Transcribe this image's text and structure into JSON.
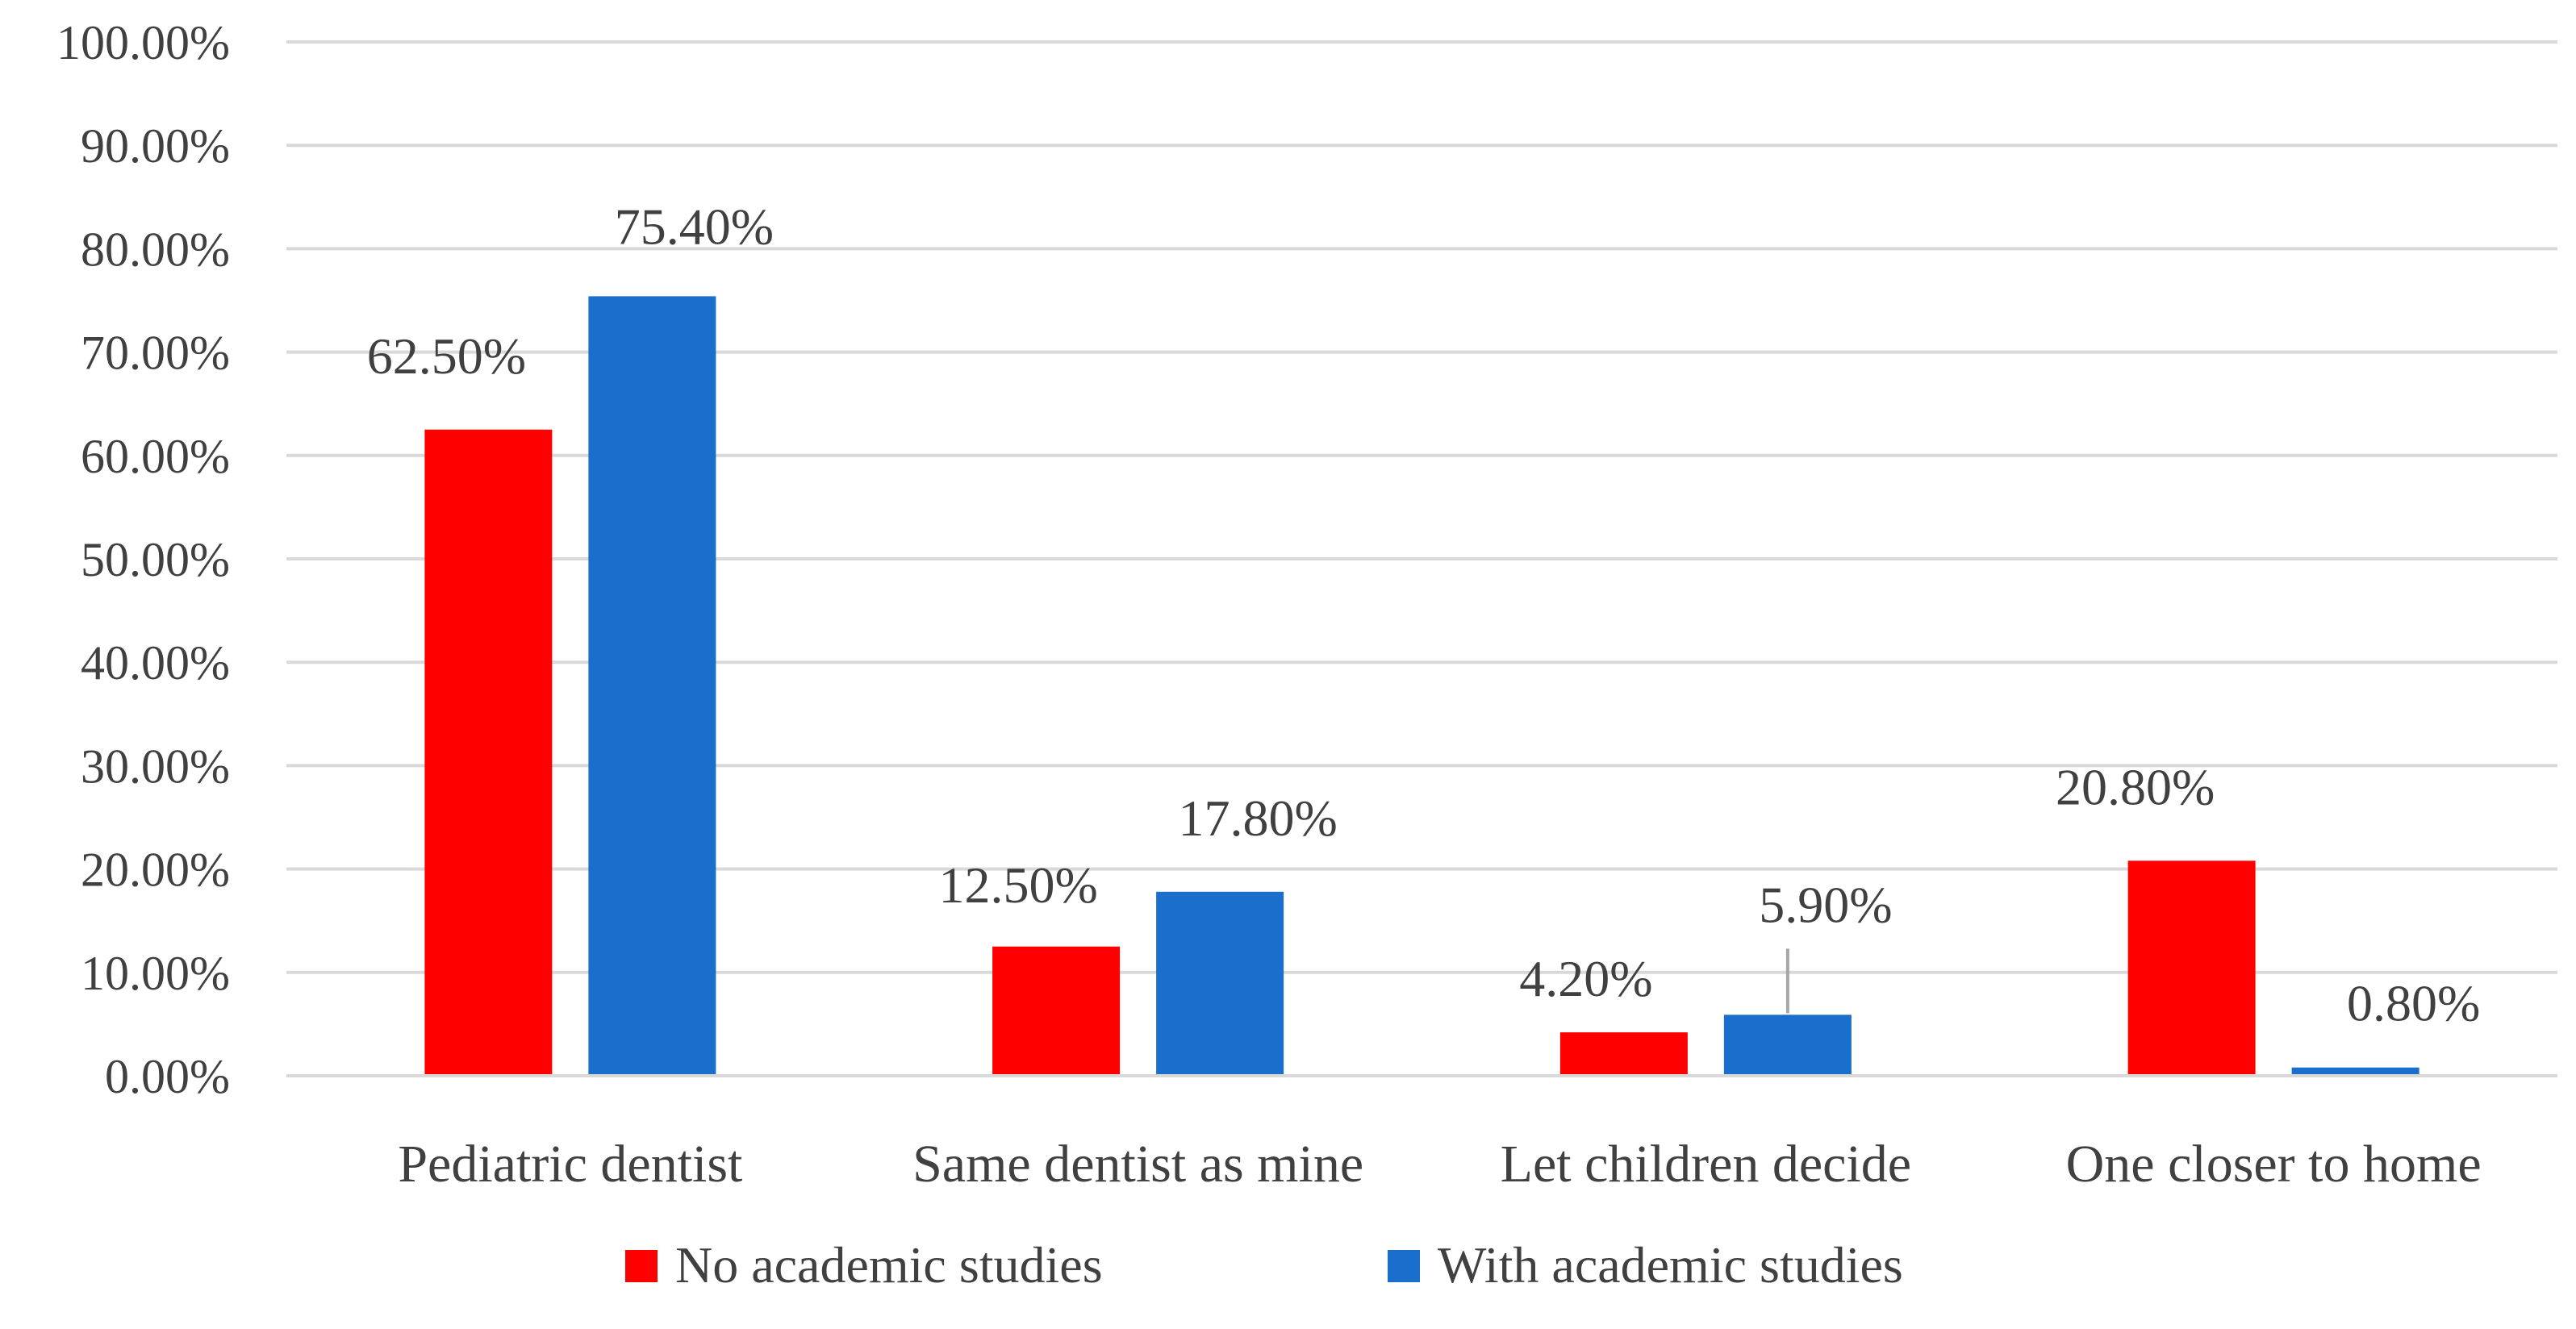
{
  "chart_data": {
    "type": "bar",
    "categories": [
      "Pediatric dentist",
      "Same dentist as mine",
      "Let children decide",
      "One closer to home"
    ],
    "series": [
      {
        "name": "No academic studies",
        "color": "#ff0000",
        "values": [
          62.5,
          12.5,
          4.2,
          20.8
        ],
        "labels": [
          "62.50%",
          "12.50%",
          "4.20%",
          "20.80%"
        ]
      },
      {
        "name": "With academic studies",
        "color": "#1a6fcc",
        "values": [
          75.4,
          17.8,
          5.9,
          0.8
        ],
        "labels": [
          "75.40%",
          "17.80%",
          "5.90%",
          "0.80%"
        ]
      }
    ],
    "ylim": [
      0,
      100
    ],
    "yticks": [
      "0.00%",
      "10.00%",
      "20.00%",
      "30.00%",
      "40.00%",
      "50.00%",
      "60.00%",
      "70.00%",
      "80.00%",
      "90.00%",
      "100.00%"
    ],
    "grid": true,
    "legend_position": "bottom",
    "title": "",
    "xlabel": "",
    "ylabel": ""
  }
}
